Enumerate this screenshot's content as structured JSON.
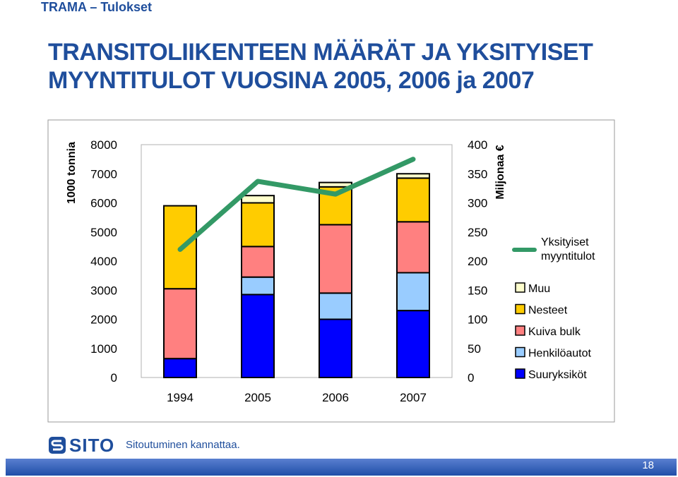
{
  "header": {
    "text": "TRAMA – Tulokset"
  },
  "title": {
    "line1": "TRANSITOLIIKENTEEN MÄÄRÄT JA YKSITYISET",
    "line2": "MYYNTITULOT VUOSINA 2005, 2006 ja 2007"
  },
  "footer": {
    "brand": "SITO",
    "tagline": "Sitoutuminen kannattaa.",
    "page_number": "18",
    "logo_icon": "sito-logo-icon"
  },
  "chart_data": {
    "type": "bar",
    "stacked": true,
    "categories": [
      "1994",
      "2005",
      "2006",
      "2007"
    ],
    "y_left": {
      "label": "1000 tonnia",
      "range": [
        0,
        8000
      ],
      "ticks": [
        "0",
        "1000",
        "2000",
        "3000",
        "4000",
        "5000",
        "6000",
        "7000",
        "8000"
      ]
    },
    "y_right": {
      "label": "Miljonaa €",
      "range": [
        0,
        400
      ],
      "ticks": [
        "0",
        "50",
        "100",
        "150",
        "200",
        "250",
        "300",
        "350",
        "400"
      ]
    },
    "series": [
      {
        "name": "Suuryksiköt",
        "color": "#0000ff",
        "values": [
          650,
          2850,
          2000,
          2300
        ]
      },
      {
        "name": "Henkilöautot",
        "color": "#99ccff",
        "values": [
          0,
          600,
          900,
          1300
        ]
      },
      {
        "name": "Kuiva bulk",
        "color": "#ff8080",
        "values": [
          2400,
          1050,
          2350,
          1750
        ]
      },
      {
        "name": "Nesteet",
        "color": "#ffcc00",
        "values": [
          2850,
          1500,
          1300,
          1500
        ]
      },
      {
        "name": "Muu",
        "color": "#ffffcc",
        "values": [
          0,
          250,
          150,
          150
        ]
      }
    ],
    "line": {
      "name": "Yksityiset myyntitulot",
      "color": "#339966",
      "values": [
        220,
        337,
        315,
        375
      ],
      "axis": "right"
    },
    "legend": "right",
    "grid": false
  }
}
